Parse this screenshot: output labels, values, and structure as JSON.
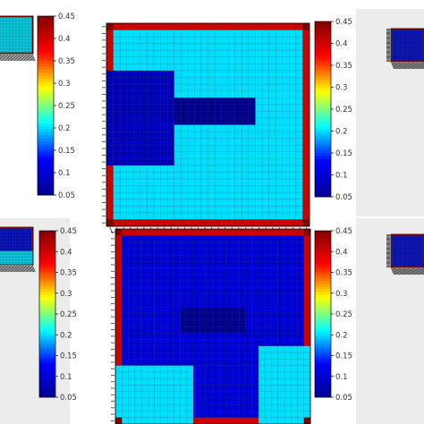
{
  "colormap": {
    "stops": [
      "#00008f",
      "#0000ff",
      "#00ffff",
      "#ffff00",
      "#ff0000",
      "#800000"
    ],
    "vmin": 0.05,
    "vmax": 0.45
  },
  "colorbar": {
    "ticks": [
      0.05,
      0.1,
      0.15,
      0.2,
      0.25,
      0.3,
      0.35,
      0.4,
      0.45
    ],
    "tick_labels": [
      "0.05",
      "0.1",
      "0.15",
      "0.2",
      "0.25",
      "0.3",
      "0.35",
      "0.4",
      "0.45"
    ]
  },
  "chart_data": [
    {
      "type": "heatmap",
      "panel": "top-left (cropped)",
      "grid": [
        30,
        30
      ],
      "background": 0.2,
      "border": 0.4,
      "regions": [],
      "ylim": [
        0.05,
        0.45
      ]
    },
    {
      "type": "heatmap",
      "panel": "top-center",
      "grid": [
        30,
        30
      ],
      "background": 0.2,
      "border": 0.4,
      "regions": [
        {
          "kind": "low-field",
          "value": 0.08,
          "x": [
            0,
            10
          ],
          "y": [
            7,
            21
          ]
        },
        {
          "kind": "obstacle",
          "value": 0.05,
          "x": [
            10,
            22
          ],
          "y": [
            11,
            15
          ]
        }
      ],
      "ylim": [
        0.05,
        0.45
      ]
    },
    {
      "type": "heatmap",
      "panel": "top-right (cropped)",
      "grid": [
        30,
        30
      ],
      "background": 0.1,
      "border": 0.4,
      "regions": [],
      "ylim": [
        0.05,
        0.45
      ]
    },
    {
      "type": "heatmap",
      "panel": "bottom-left (cropped)",
      "grid": [
        30,
        30
      ],
      "background": 0.1,
      "border": 0.4,
      "regions": [
        {
          "kind": "mixed-field",
          "value": 0.2,
          "x": [
            0,
            30
          ],
          "y": [
            19,
            30
          ]
        }
      ],
      "ylim": [
        0.05,
        0.45
      ]
    },
    {
      "type": "heatmap",
      "panel": "bottom-center",
      "grid": [
        30,
        30
      ],
      "background": 0.1,
      "border": 0.4,
      "regions": [
        {
          "kind": "mixed-field",
          "value": 0.2,
          "x": [
            0,
            12
          ],
          "y": [
            21,
            30
          ]
        },
        {
          "kind": "mixed-field",
          "value": 0.2,
          "x": [
            22,
            30
          ],
          "y": [
            18,
            30
          ]
        },
        {
          "kind": "obstacle",
          "value": 0.05,
          "x": [
            10,
            20
          ],
          "y": [
            12,
            16
          ]
        }
      ],
      "ylim": [
        0.05,
        0.45
      ]
    },
    {
      "type": "heatmap",
      "panel": "bottom-right (cropped)",
      "grid": [
        30,
        30
      ],
      "background": 0.1,
      "border": 0.4,
      "regions": [],
      "ylim": [
        0.05,
        0.45
      ]
    }
  ]
}
